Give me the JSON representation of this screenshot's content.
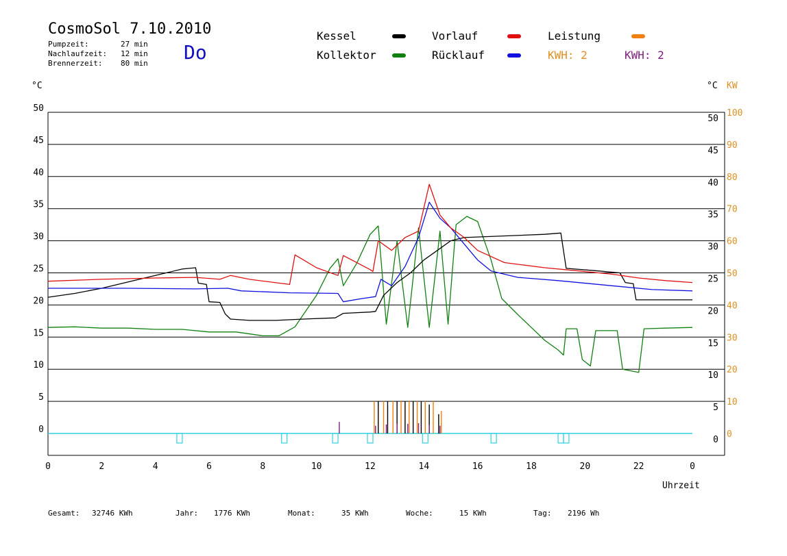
{
  "header": {
    "title": "CosmoSol 7.10.2010",
    "day": "Do",
    "stats": [
      {
        "label": "Pumpzeit:",
        "value": "27 min"
      },
      {
        "label": "Nachlaufzeit:",
        "value": "12 min"
      },
      {
        "label": "Brennerzeit:",
        "value": "80 min"
      }
    ]
  },
  "legend": {
    "kessel": {
      "label": "Kessel",
      "color": "#000000"
    },
    "vorlauf": {
      "label": "Vorlauf",
      "color": "#e01010"
    },
    "leistung": {
      "label": "Leistung",
      "color": "#f08010"
    },
    "kollektor": {
      "label": "Kollektor",
      "color": "#108010"
    },
    "ruecklauf": {
      "label": "Rücklauf",
      "color": "#1010e0"
    },
    "kwh_orange": {
      "label": "KWH: 2",
      "color": "#e09020"
    },
    "kwh_purple": {
      "label": "KWH: 2",
      "color": "#802080"
    }
  },
  "axes": {
    "left_unit": "°C",
    "right_unit": "°C",
    "right_unit2": "KW",
    "xlabel": "Uhrzeit"
  },
  "footer": {
    "gesamt_label": "Gesamt:",
    "gesamt_value": "32746 KWh",
    "jahr_label": "Jahr:",
    "jahr_value": "1776 KWh",
    "monat_label": "Monat:",
    "monat_value": "35 KWh",
    "woche_label": "Woche:",
    "woche_value": "15 KWh",
    "tag_label": "Tag:",
    "tag_value": "2196 Wh"
  },
  "colors": {
    "grid": "#000000",
    "cyan": "#30d0e0",
    "right_kw": "#e09020"
  },
  "chart_data": {
    "type": "line",
    "xlim": [
      0,
      24
    ],
    "ylim": [
      0,
      50
    ],
    "y2lim": [
      0,
      100
    ],
    "x_ticks": [
      "0",
      "2",
      "4",
      "6",
      "8",
      "10",
      "12",
      "14",
      "16",
      "18",
      "20",
      "22",
      "0"
    ],
    "y_ticks": [
      "0",
      "5",
      "10",
      "15",
      "20",
      "25",
      "30",
      "35",
      "40",
      "45",
      "50"
    ],
    "y2_ticks": [
      "0",
      "10",
      "20",
      "30",
      "40",
      "50",
      "60",
      "70",
      "80",
      "90",
      "100"
    ],
    "series": [
      {
        "name": "Kessel",
        "color": "#000000",
        "points": [
          [
            0,
            21.2
          ],
          [
            1,
            21.8
          ],
          [
            2,
            22.6
          ],
          [
            3,
            23.6
          ],
          [
            4,
            24.6
          ],
          [
            5,
            25.6
          ],
          [
            5.5,
            25.8
          ],
          [
            5.6,
            23.4
          ],
          [
            5.9,
            23.2
          ],
          [
            6.0,
            20.5
          ],
          [
            6.4,
            20.4
          ],
          [
            6.6,
            18.6
          ],
          [
            6.8,
            17.8
          ],
          [
            7.5,
            17.6
          ],
          [
            8.5,
            17.6
          ],
          [
            9.5,
            17.8
          ],
          [
            10.7,
            18.0
          ],
          [
            11.0,
            18.7
          ],
          [
            12.0,
            18.9
          ],
          [
            12.2,
            19.0
          ],
          [
            12.5,
            21.5
          ],
          [
            13.0,
            23.5
          ],
          [
            13.5,
            25.0
          ],
          [
            14.0,
            27.0
          ],
          [
            14.5,
            28.5
          ],
          [
            15.0,
            30.0
          ],
          [
            15.5,
            30.5
          ],
          [
            18.5,
            31.0
          ],
          [
            19.1,
            31.2
          ],
          [
            19.3,
            25.7
          ],
          [
            20.5,
            25.3
          ],
          [
            21.3,
            25.0
          ],
          [
            21.5,
            23.5
          ],
          [
            21.8,
            23.3
          ],
          [
            21.9,
            20.8
          ],
          [
            24,
            20.8
          ]
        ]
      },
      {
        "name": "Vorlauf",
        "color": "#e01010",
        "points": [
          [
            0,
            23.7
          ],
          [
            2,
            24.0
          ],
          [
            4,
            24.2
          ],
          [
            5.5,
            24.3
          ],
          [
            6.4,
            24.0
          ],
          [
            6.8,
            24.6
          ],
          [
            7.5,
            24.0
          ],
          [
            9.0,
            23.2
          ],
          [
            9.2,
            27.8
          ],
          [
            10.0,
            25.8
          ],
          [
            10.8,
            24.6
          ],
          [
            11.0,
            27.7
          ],
          [
            12.0,
            25.5
          ],
          [
            12.1,
            25.2
          ],
          [
            12.3,
            30.0
          ],
          [
            12.8,
            28.5
          ],
          [
            13.3,
            30.5
          ],
          [
            13.8,
            31.5
          ],
          [
            14.2,
            38.8
          ],
          [
            14.6,
            34.0
          ],
          [
            15.0,
            32.0
          ],
          [
            15.5,
            30.5
          ],
          [
            16.0,
            28.5
          ],
          [
            17.0,
            26.6
          ],
          [
            18.5,
            25.8
          ],
          [
            19.5,
            25.4
          ],
          [
            21.0,
            24.8
          ],
          [
            22.0,
            24.2
          ],
          [
            23.0,
            23.8
          ],
          [
            24,
            23.5
          ]
        ]
      },
      {
        "name": "Rücklauf",
        "color": "#1010e0",
        "points": [
          [
            0,
            22.6
          ],
          [
            3,
            22.6
          ],
          [
            5.5,
            22.5
          ],
          [
            6.7,
            22.6
          ],
          [
            7.2,
            22.2
          ],
          [
            9.0,
            21.9
          ],
          [
            10.8,
            21.8
          ],
          [
            11.0,
            20.5
          ],
          [
            11.7,
            21.0
          ],
          [
            12.2,
            21.3
          ],
          [
            12.4,
            24.0
          ],
          [
            12.8,
            23.0
          ],
          [
            13.3,
            26.0
          ],
          [
            13.8,
            30.5
          ],
          [
            14.2,
            36.0
          ],
          [
            14.6,
            33.5
          ],
          [
            15.0,
            32.0
          ],
          [
            15.5,
            29.5
          ],
          [
            16.0,
            27.0
          ],
          [
            16.5,
            25.3
          ],
          [
            17.5,
            24.3
          ],
          [
            19.0,
            23.8
          ],
          [
            21.0,
            23.0
          ],
          [
            22.5,
            22.4
          ],
          [
            24,
            22.2
          ]
        ]
      },
      {
        "name": "Kollektor",
        "color": "#108010",
        "points": [
          [
            0,
            16.5
          ],
          [
            1,
            16.6
          ],
          [
            2,
            16.4
          ],
          [
            3,
            16.4
          ],
          [
            4,
            16.2
          ],
          [
            5,
            16.2
          ],
          [
            6,
            15.8
          ],
          [
            7,
            15.8
          ],
          [
            8,
            15.2
          ],
          [
            8.6,
            15.2
          ],
          [
            9.2,
            16.6
          ],
          [
            10.0,
            21.5
          ],
          [
            10.5,
            25.7
          ],
          [
            10.8,
            27.2
          ],
          [
            11.0,
            23.0
          ],
          [
            11.5,
            26.5
          ],
          [
            12.0,
            31.0
          ],
          [
            12.3,
            32.3
          ],
          [
            12.6,
            17.0
          ],
          [
            13.0,
            30.0
          ],
          [
            13.4,
            16.5
          ],
          [
            13.8,
            32.0
          ],
          [
            14.2,
            16.5
          ],
          [
            14.6,
            31.5
          ],
          [
            14.9,
            17.0
          ],
          [
            15.2,
            32.5
          ],
          [
            15.6,
            33.8
          ],
          [
            16.0,
            33.0
          ],
          [
            16.5,
            27.0
          ],
          [
            16.9,
            21.0
          ],
          [
            17.5,
            18.5
          ],
          [
            18.0,
            16.5
          ],
          [
            18.5,
            14.5
          ],
          [
            19.0,
            13.0
          ],
          [
            19.2,
            12.2
          ],
          [
            19.3,
            16.3
          ],
          [
            19.7,
            16.3
          ],
          [
            19.9,
            11.5
          ],
          [
            20.2,
            10.5
          ],
          [
            20.4,
            16.0
          ],
          [
            21.0,
            16.0
          ],
          [
            21.2,
            16.0
          ],
          [
            21.4,
            10.0
          ],
          [
            22.0,
            9.5
          ],
          [
            22.2,
            16.3
          ],
          [
            23.0,
            16.4
          ],
          [
            24,
            16.5
          ]
        ]
      }
    ],
    "bursts": {
      "orange": [
        [
          12.15,
          5
        ],
        [
          12.5,
          5
        ],
        [
          12.85,
          5
        ],
        [
          13.15,
          5
        ],
        [
          13.45,
          5
        ],
        [
          13.75,
          5
        ],
        [
          14.05,
          5
        ],
        [
          14.35,
          5
        ],
        [
          14.65,
          3.5
        ]
      ],
      "black": [
        [
          12.3,
          5
        ],
        [
          12.65,
          5
        ],
        [
          13.0,
          5
        ],
        [
          13.3,
          5
        ],
        [
          13.6,
          5
        ],
        [
          13.9,
          5
        ],
        [
          14.2,
          4.5
        ],
        [
          14.55,
          3
        ]
      ],
      "purple": [
        [
          10.85,
          1.8
        ],
        [
          12.2,
          1.2
        ],
        [
          12.6,
          1.4
        ],
        [
          13.0,
          1.5
        ],
        [
          13.4,
          1.5
        ],
        [
          13.8,
          1.6
        ],
        [
          14.2,
          1.3
        ],
        [
          14.6,
          1.2
        ]
      ]
    },
    "cyan_marks": [
      4.9,
      8.8,
      10.7,
      12.0,
      14.05,
      16.6,
      19.1,
      19.3
    ]
  }
}
